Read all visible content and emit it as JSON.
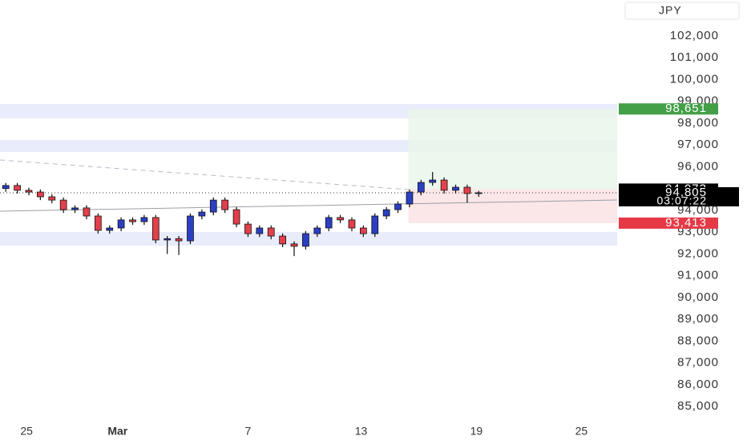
{
  "chart_data": {
    "type": "candlestick",
    "currency": "JPY",
    "xlim": [
      -0.5,
      53
    ],
    "xticks": [
      {
        "value": 1.8,
        "label": "25"
      },
      {
        "value": 9.7,
        "label": "Mar"
      },
      {
        "value": 21,
        "label": "7"
      },
      {
        "value": 30.8,
        "label": "13"
      },
      {
        "value": 40.8,
        "label": "19"
      },
      {
        "value": 49.9,
        "label": "25"
      }
    ],
    "ylim": [
      84380,
      103650
    ],
    "yticks": [
      {
        "value": 85000,
        "label": "85,000"
      },
      {
        "value": 86000,
        "label": "86,000"
      },
      {
        "value": 87000,
        "label": "87,000"
      },
      {
        "value": 88000,
        "label": "88,000"
      },
      {
        "value": 89000,
        "label": "89,000"
      },
      {
        "value": 90000,
        "label": "90,000"
      },
      {
        "value": 91000,
        "label": "91,000"
      },
      {
        "value": 92000,
        "label": "92,000"
      },
      {
        "value": 93000,
        "label": "93,000"
      },
      {
        "value": 94000,
        "label": "94,000"
      },
      {
        "value": 95000,
        "label": "95,000"
      },
      {
        "value": 96000,
        "label": "96,000"
      },
      {
        "value": 97000,
        "label": "97,000"
      },
      {
        "value": 98000,
        "label": "98,000"
      },
      {
        "value": 99000,
        "label": "99,000"
      },
      {
        "value": 100000,
        "label": "100,000"
      },
      {
        "value": 101000,
        "label": "101,000"
      },
      {
        "value": 102000,
        "label": "102,000"
      }
    ],
    "up_color": "#2b3fc4",
    "down_color": "#e3404b",
    "open": [
      95000,
      95140,
      94920,
      94840,
      94620,
      94470,
      94030,
      94110,
      93740,
      93080,
      93190,
      93560,
      93480,
      93670,
      92640,
      92700,
      92600,
      93740,
      93920,
      94470,
      94030,
      93370,
      92930,
      93190,
      92820,
      92460,
      92350,
      92930,
      93190,
      93670,
      93560,
      93190,
      92930,
      93740,
      94030,
      94290,
      94840,
      95280,
      95390,
      94920,
      95060,
      94770
    ],
    "high": [
      95260,
      95260,
      95040,
      94960,
      94740,
      94590,
      94230,
      94230,
      93860,
      93310,
      93680,
      93680,
      93790,
      93790,
      92820,
      92820,
      93860,
      94040,
      94590,
      94590,
      94150,
      93490,
      93310,
      93310,
      92940,
      92580,
      93050,
      93310,
      93790,
      93790,
      93680,
      93310,
      93860,
      94150,
      94410,
      94960,
      95400,
      95760,
      95510,
      95180,
      95180,
      94890
    ],
    "low": [
      94850,
      94770,
      94690,
      94470,
      94320,
      93880,
      93880,
      93590,
      92930,
      92930,
      93040,
      93330,
      93330,
      92490,
      92000,
      91950,
      92450,
      93590,
      93770,
      93880,
      93220,
      92780,
      92780,
      92670,
      92310,
      91900,
      92200,
      92780,
      93040,
      93410,
      93040,
      92780,
      92780,
      93590,
      93880,
      94140,
      94690,
      95130,
      94770,
      94770,
      94350,
      94620
    ],
    "close": [
      95140,
      94920,
      94840,
      94620,
      94470,
      94030,
      94110,
      93740,
      93080,
      93190,
      93560,
      93480,
      93670,
      92640,
      92700,
      92600,
      93740,
      93920,
      94470,
      94030,
      93370,
      92930,
      93190,
      92820,
      92460,
      92350,
      92930,
      93190,
      93670,
      93560,
      93190,
      92930,
      93740,
      94030,
      94290,
      94840,
      95280,
      95390,
      94920,
      95060,
      94770,
      94805
    ],
    "zones": [
      {
        "from": 98220,
        "to": 98880
      },
      {
        "from": 96680,
        "to": 97230
      },
      {
        "from": 92380,
        "to": 93010
      }
    ],
    "position_start": 34.9,
    "price_labels": [
      {
        "value": 98651,
        "label": "98,651",
        "color": "#43a047"
      },
      {
        "value": 94973,
        "label": "94,973",
        "color": "#000000"
      },
      {
        "value": 94805,
        "label": "94,805",
        "color": "#000000"
      },
      {
        "value": 93413,
        "label": "93,413",
        "color": "#e53945"
      }
    ],
    "countdown": "03:07:22"
  }
}
